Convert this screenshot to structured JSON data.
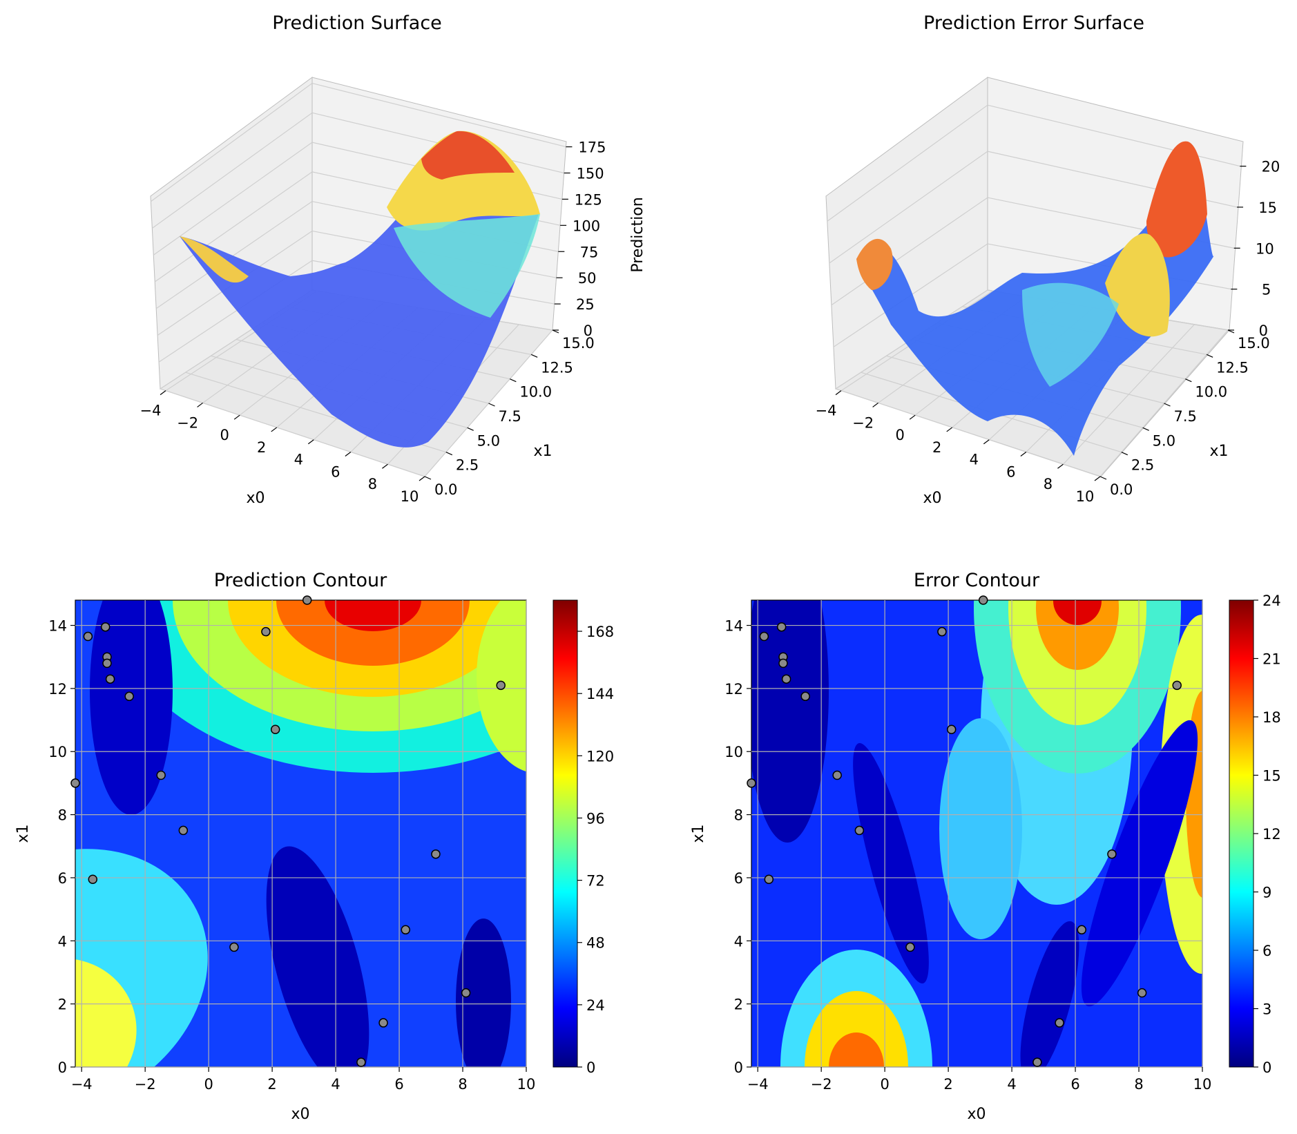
{
  "figure": {
    "background": "#ffffff"
  },
  "colormap": {
    "name": "jet",
    "stops": [
      "#00007f",
      "#0000ff",
      "#007fff",
      "#00ffff",
      "#7fff7f",
      "#ffff00",
      "#ff7f00",
      "#ff0000",
      "#7f0000"
    ]
  },
  "chart_data": [
    {
      "type": "surface",
      "panel": "prediction-surface",
      "title": "Prediction Surface",
      "xlabel": "x0",
      "ylabel": "x1",
      "zlabel": "Prediction",
      "x_ticks": [
        "−4",
        "−2",
        "0",
        "2",
        "4",
        "6",
        "8",
        "10"
      ],
      "y_ticks": [
        "0.0",
        "2.5",
        "5.0",
        "7.5",
        "10.0",
        "12.5",
        "15.0"
      ],
      "z_ticks": [
        "0",
        "25",
        "50",
        "75",
        "100",
        "125",
        "150",
        "175"
      ],
      "xlim": [
        -4.3,
        10
      ],
      "ylim": [
        0,
        15
      ],
      "zlim": [
        0,
        180
      ],
      "grid": true
    },
    {
      "type": "surface",
      "panel": "error-surface",
      "title": "Prediction Error Surface",
      "xlabel": "x0",
      "ylabel": "x1",
      "zlabel": "",
      "x_ticks": [
        "−4",
        "−2",
        "0",
        "2",
        "4",
        "6",
        "8",
        "10"
      ],
      "y_ticks": [
        "0.0",
        "2.5",
        "5.0",
        "7.5",
        "10.0",
        "12.5",
        "15.0"
      ],
      "z_ticks": [
        "0",
        "5",
        "10",
        "15",
        "20"
      ],
      "xlim": [
        -4.3,
        10
      ],
      "ylim": [
        0,
        15
      ],
      "zlim": [
        0,
        23
      ],
      "grid": true
    },
    {
      "type": "heatmap",
      "panel": "prediction-contour",
      "title": "Prediction Contour",
      "xlabel": "x0",
      "ylabel": "x1",
      "xlim": [
        -4.2,
        10
      ],
      "ylim": [
        0,
        14.8
      ],
      "x_ticks": [
        "−4",
        "−2",
        "0",
        "2",
        "4",
        "6",
        "8",
        "10"
      ],
      "y_ticks": [
        "0",
        "2",
        "4",
        "6",
        "8",
        "10",
        "12",
        "14"
      ],
      "colorbar_range": [
        0,
        180
      ],
      "colorbar_ticks": [
        "0",
        "24",
        "48",
        "72",
        "96",
        "120",
        "144",
        "168"
      ],
      "grid": true
    },
    {
      "type": "heatmap",
      "panel": "error-contour",
      "title": "Error Contour",
      "xlabel": "x0",
      "ylabel": "x1",
      "xlim": [
        -4.2,
        10
      ],
      "ylim": [
        0,
        14.8
      ],
      "x_ticks": [
        "−4",
        "−2",
        "0",
        "2",
        "4",
        "6",
        "8",
        "10"
      ],
      "y_ticks": [
        "0",
        "2",
        "4",
        "6",
        "8",
        "10",
        "12",
        "14"
      ],
      "colorbar_range": [
        0,
        24
      ],
      "colorbar_ticks": [
        "0",
        "3",
        "6",
        "9",
        "12",
        "15",
        "18",
        "21",
        "24"
      ],
      "grid": true
    }
  ],
  "sample_points": [
    [
      -4.2,
      9.0
    ],
    [
      -3.8,
      13.65
    ],
    [
      -3.25,
      13.95
    ],
    [
      -3.2,
      13.0
    ],
    [
      -3.2,
      12.8
    ],
    [
      -3.1,
      12.3
    ],
    [
      -2.5,
      11.75
    ],
    [
      -3.65,
      5.95
    ],
    [
      -1.5,
      9.25
    ],
    [
      -0.8,
      7.5
    ],
    [
      0.8,
      3.8
    ],
    [
      1.8,
      13.8
    ],
    [
      2.1,
      10.7
    ],
    [
      3.1,
      14.8
    ],
    [
      4.8,
      0.15
    ],
    [
      5.5,
      1.4
    ],
    [
      6.2,
      4.35
    ],
    [
      7.15,
      6.75
    ],
    [
      8.1,
      2.35
    ],
    [
      9.2,
      12.1
    ]
  ]
}
